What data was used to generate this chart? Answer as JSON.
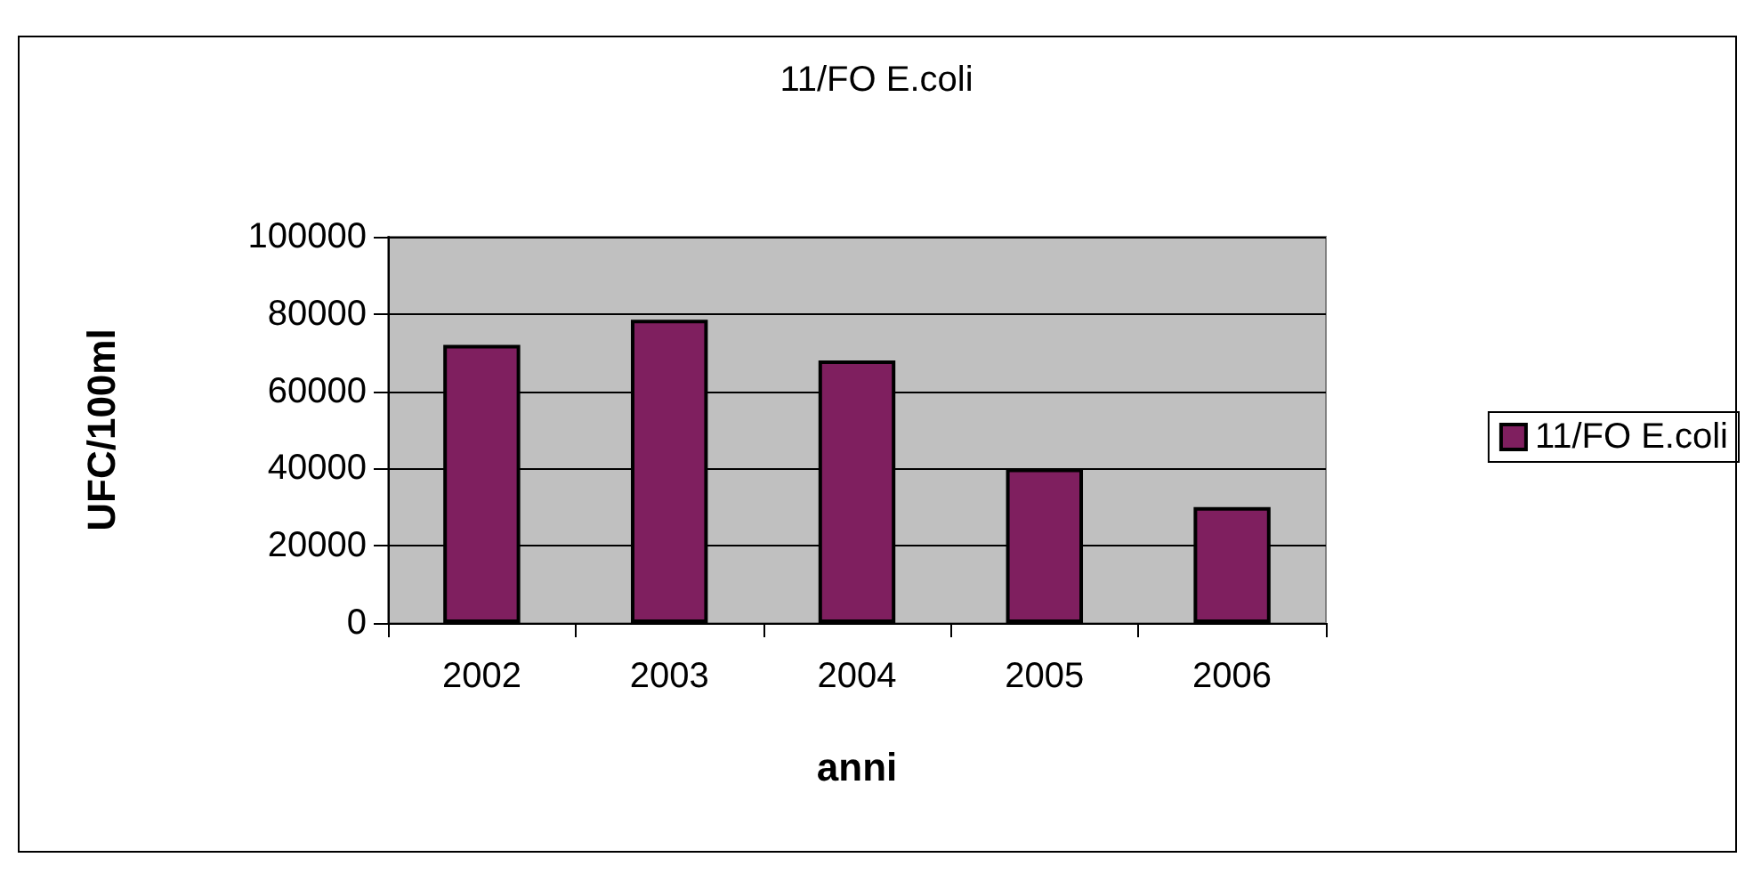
{
  "chart_data": {
    "type": "bar",
    "title": "11/FO E.coli",
    "xlabel": "anni",
    "ylabel": "UFC/100ml",
    "categories": [
      "2002",
      "2003",
      "2004",
      "2005",
      "2006"
    ],
    "series": [
      {
        "name": "11/FO E.coli",
        "color": "#7f1f5f",
        "values": [
          72000,
          78500,
          68000,
          40000,
          30000
        ]
      }
    ],
    "ylim": [
      0,
      100000
    ],
    "yticks": [
      0,
      20000,
      40000,
      60000,
      80000,
      100000
    ],
    "grid": "y",
    "legend": "right"
  }
}
